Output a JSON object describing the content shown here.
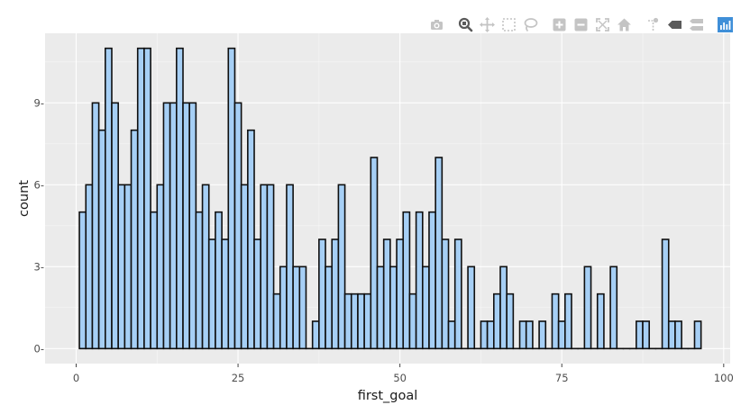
{
  "modebar": {
    "buttons": [
      {
        "name": "camera-icon",
        "group": 1
      },
      {
        "name": "zoom-icon",
        "group": 2
      },
      {
        "name": "pan-icon",
        "group": 2
      },
      {
        "name": "box-select-icon",
        "group": 2
      },
      {
        "name": "lasso-select-icon",
        "group": 2
      },
      {
        "name": "zoom-in-icon",
        "group": 3
      },
      {
        "name": "zoom-out-icon",
        "group": 3
      },
      {
        "name": "autoscale-icon",
        "group": 3
      },
      {
        "name": "home-icon",
        "group": 3
      },
      {
        "name": "spike-lines-icon",
        "group": 4
      },
      {
        "name": "hover-closest-icon",
        "group": 4
      },
      {
        "name": "hover-compare-icon",
        "group": 4
      },
      {
        "name": "plotly-logo-icon",
        "group": 5
      }
    ],
    "icon_color": "#c4c4c4",
    "active_color": "#5a5a5a",
    "logo_color": "#3f8fd8"
  },
  "chart_data": {
    "type": "bar",
    "subtype": "histogram",
    "xlabel": "first_goal",
    "ylabel": "count",
    "xlim": [
      -4.8,
      101
    ],
    "ylim": [
      -0.55,
      11.55
    ],
    "xticks": [
      0,
      25,
      50,
      75,
      100
    ],
    "xtick_labels": [
      "0",
      "25",
      "50",
      "75",
      "100"
    ],
    "yticks": [
      0,
      3,
      6,
      9
    ],
    "ytick_labels": [
      "0-",
      "3-",
      "6-",
      "9-"
    ],
    "grid": true,
    "bar_color": "#a6cff5",
    "bar_outline": "#0f0f0f",
    "panel_color": "#ebebeb",
    "bins": {
      "start": 0.5,
      "width": 1,
      "counts": [
        5,
        6,
        9,
        8,
        11,
        9,
        6,
        6,
        8,
        11,
        11,
        5,
        6,
        9,
        9,
        11,
        9,
        9,
        5,
        6,
        4,
        5,
        4,
        11,
        9,
        6,
        8,
        4,
        6,
        6,
        2,
        3,
        6,
        3,
        3,
        0,
        1,
        4,
        3,
        4,
        6,
        2,
        2,
        2,
        2,
        7,
        3,
        4,
        3,
        4,
        5,
        2,
        5,
        3,
        5,
        7,
        4,
        1,
        4,
        0,
        3,
        0,
        1,
        1,
        2,
        3,
        2,
        0,
        1,
        1,
        0,
        1,
        0,
        2,
        1,
        2,
        0,
        0,
        3,
        0,
        2,
        0,
        3,
        0,
        0,
        0,
        1,
        1,
        0,
        0,
        4,
        1,
        1,
        0,
        0,
        1
      ]
    }
  }
}
